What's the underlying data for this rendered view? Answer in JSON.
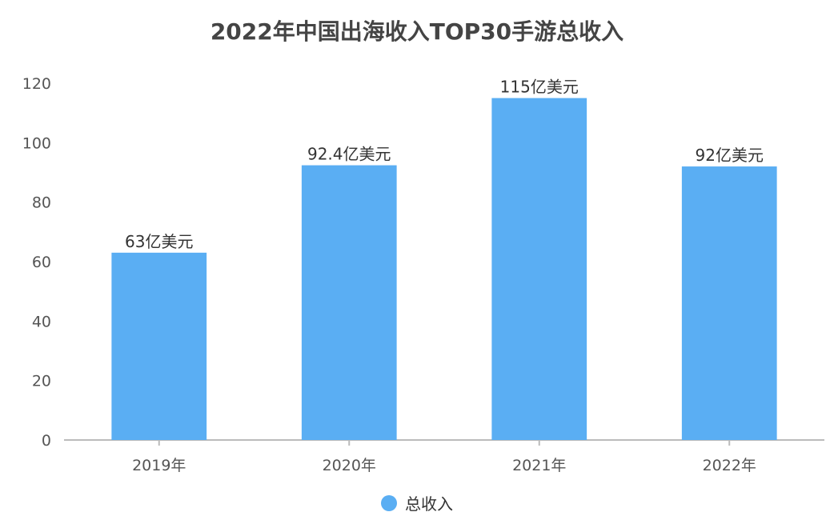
{
  "chart_data": {
    "type": "bar",
    "title": "2022年中国出海收入TOP30手游总收入",
    "categories": [
      "2019年",
      "2020年",
      "2021年",
      "2022年"
    ],
    "series": [
      {
        "name": "总收入",
        "values": [
          63,
          92.4,
          115,
          92
        ],
        "data_labels": [
          "63亿美元",
          "92.4亿美元",
          "115亿美元",
          "92亿美元"
        ]
      }
    ],
    "ylim": [
      0,
      120
    ],
    "yticks": [
      0,
      20,
      40,
      60,
      80,
      100,
      120
    ],
    "grid": false,
    "legend_position": "bottom",
    "colors": {
      "bar": "#5AAEF3",
      "axis": "#BBBBBB"
    }
  }
}
